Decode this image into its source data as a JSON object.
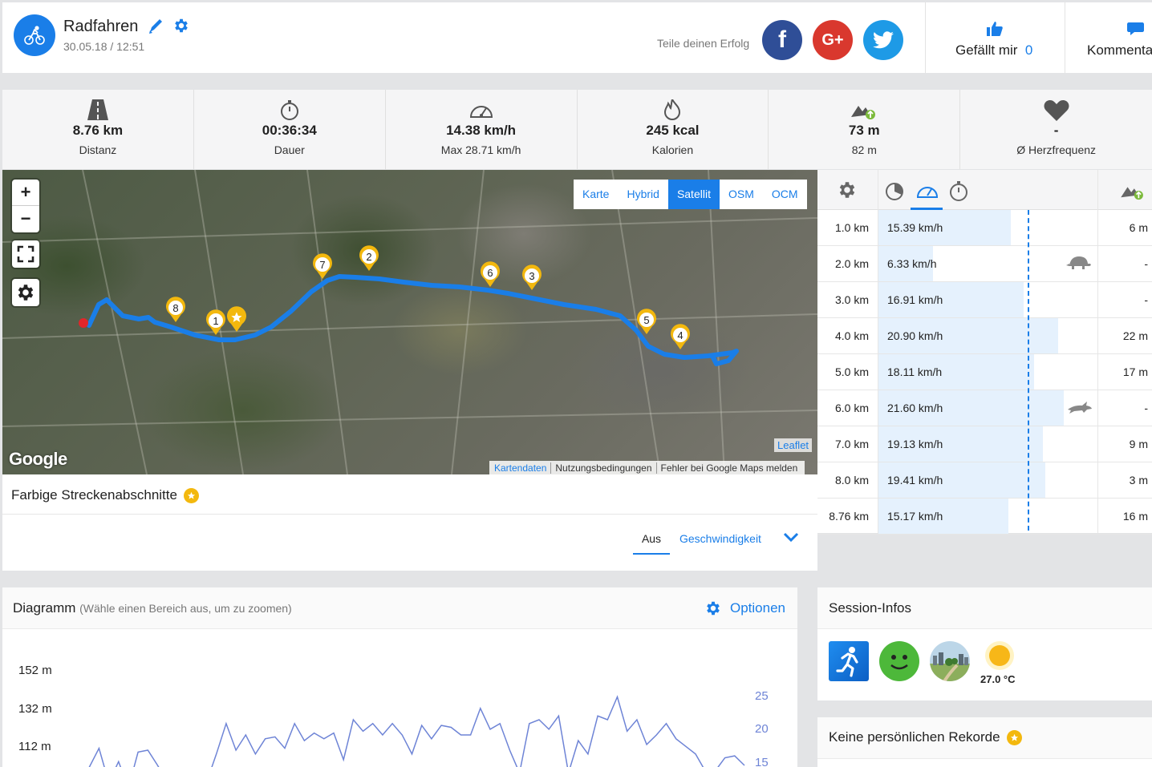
{
  "header": {
    "title": "Radfahren",
    "date": "30.05.18 / 12:51",
    "share_text": "Teile deinen Erfolg",
    "social": {
      "facebook": "f",
      "google": "G+",
      "twitter": "twitter"
    },
    "like_label": "Gefällt mir",
    "like_count": "0",
    "comment_label": "Kommentare"
  },
  "stats": [
    {
      "icon": "road-icon",
      "value": "8.76 km",
      "label": "Distanz"
    },
    {
      "icon": "stopwatch-icon",
      "value": "00:36:34",
      "label": "Dauer"
    },
    {
      "icon": "speedometer-icon",
      "value": "14.38 km/h",
      "label": "Max 28.71 km/h"
    },
    {
      "icon": "flame-icon",
      "value": "245 kcal",
      "label": "Kalorien"
    },
    {
      "icon": "elevation-icon",
      "value": "73 m",
      "label": "82 m"
    },
    {
      "icon": "heart-icon",
      "value": "-",
      "label": "Ø Herzfrequenz"
    }
  ],
  "map": {
    "zoom_in": "+",
    "zoom_out": "−",
    "layers": [
      {
        "label": "Karte",
        "active": false
      },
      {
        "label": "Hybrid",
        "active": false
      },
      {
        "label": "Satellit",
        "active": true
      },
      {
        "label": "OSM",
        "active": false
      },
      {
        "label": "OCM",
        "active": false
      }
    ],
    "google_logo": "Google",
    "leaflet": "Leaflet",
    "attribution": [
      "Kartendaten",
      "Nutzungsbedingungen",
      "Fehler bei Google Maps melden"
    ],
    "markers": [
      "1",
      "2",
      "3",
      "4",
      "5",
      "6",
      "7",
      "8"
    ],
    "route_color": "#1a7ee8",
    "marker_color": "#f3b80e"
  },
  "segments": {
    "title": "Farbige Streckenabschnitte",
    "option_off": "Aus",
    "option_speed": "Geschwindigkeit"
  },
  "splits": [
    {
      "km": "1.0 km",
      "speed": "15.39 km/h",
      "elev": "6 m",
      "speed_value": 15.39
    },
    {
      "km": "2.0 km",
      "speed": "6.33 km/h",
      "elev": "-",
      "speed_value": 6.33,
      "badge": "turtle-icon"
    },
    {
      "km": "3.0 km",
      "speed": "16.91 km/h",
      "elev": "-",
      "speed_value": 16.91
    },
    {
      "km": "4.0 km",
      "speed": "20.90 km/h",
      "elev": "22 m",
      "speed_value": 20.9
    },
    {
      "km": "5.0 km",
      "speed": "18.11 km/h",
      "elev": "17 m",
      "speed_value": 18.11
    },
    {
      "km": "6.0 km",
      "speed": "21.60 km/h",
      "elev": "-",
      "speed_value": 21.6,
      "badge": "hare-icon"
    },
    {
      "km": "7.0 km",
      "speed": "19.13 km/h",
      "elev": "9 m",
      "speed_value": 19.13
    },
    {
      "km": "8.0 km",
      "speed": "19.41 km/h",
      "elev": "3 m",
      "speed_value": 19.41
    },
    {
      "km": "8.76 km",
      "speed": "15.17 km/h",
      "elev": "16 m",
      "speed_value": 15.17
    }
  ],
  "diagram": {
    "title": "Diagramm",
    "hint": "(Wähle einen Bereich aus, um zu zoomen)",
    "options_label": "Optionen"
  },
  "chart_data": {
    "type": "line",
    "title": "",
    "ylabel_left": "",
    "ylabel_right": "",
    "y_left_ticks": [
      "152 m",
      "132 m",
      "112 m"
    ],
    "y_right_ticks": [
      "25",
      "20",
      "15"
    ],
    "series": [
      {
        "color": "#6e84d6",
        "values": [
          0,
          103,
          113,
          95,
          106,
          92,
          111,
          112,
          104,
          0,
          0,
          0,
          0,
          0,
          110,
          126,
          112,
          120,
          110,
          118,
          119,
          113,
          126,
          117,
          121,
          118,
          121,
          107,
          128,
          122,
          126,
          120,
          126,
          120,
          110,
          125,
          118,
          125,
          124,
          120,
          120,
          134,
          123,
          126,
          112,
          100,
          126,
          128,
          123,
          130,
          100,
          117,
          110,
          130,
          128,
          140,
          122,
          128,
          115,
          120,
          126,
          118,
          114,
          110,
          101,
          101,
          108,
          109,
          104
        ]
      }
    ]
  },
  "session": {
    "title": "Session-Infos",
    "temperature": "27.0 °C",
    "icons": [
      "runner-icon",
      "smiley-icon",
      "landscape-icon",
      "sun-icon"
    ]
  },
  "records": {
    "title": "Keine persönlichen Rekorde"
  }
}
